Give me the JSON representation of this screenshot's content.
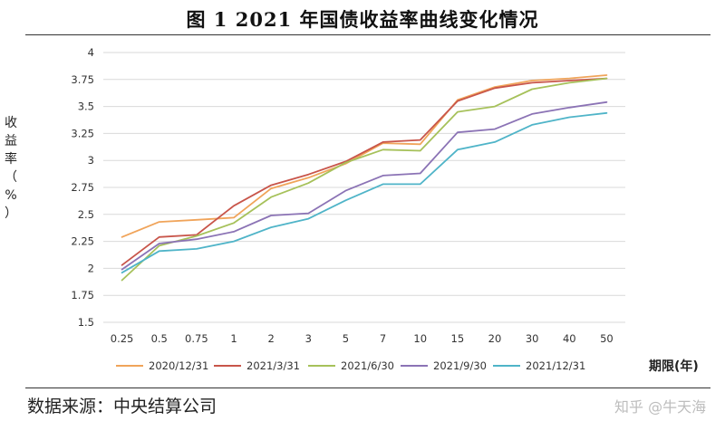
{
  "title": "图 1 2021 年国债收益率曲线变化情况",
  "source": "数据来源：中央结算公司",
  "watermark": "知乎 @牛天海",
  "chart_data": {
    "type": "line",
    "ylabel": "收益率（%）",
    "xlabel": "期限(年)",
    "categories": [
      "0.25",
      "0.5",
      "0.75",
      "1",
      "2",
      "3",
      "5",
      "7",
      "10",
      "15",
      "20",
      "30",
      "40",
      "50"
    ],
    "ylim": [
      1.5,
      4
    ],
    "yticks": [
      "1.5",
      "1.75",
      "2",
      "2.25",
      "2.5",
      "2.75",
      "3",
      "3.25",
      "3.5",
      "3.75",
      "4"
    ],
    "grid": true,
    "legend_position": "bottom",
    "series": [
      {
        "name": "2020/12/31",
        "color": "#F0A45A",
        "values": [
          2.29,
          2.43,
          2.45,
          2.47,
          2.74,
          2.84,
          2.97,
          3.16,
          3.15,
          3.56,
          3.68,
          3.74,
          3.76,
          3.79
        ]
      },
      {
        "name": "2021/3/31",
        "color": "#C8554A",
        "values": [
          2.03,
          2.29,
          2.31,
          2.58,
          2.77,
          2.87,
          2.99,
          3.17,
          3.19,
          3.55,
          3.67,
          3.72,
          3.74,
          3.76
        ]
      },
      {
        "name": "2021/6/30",
        "color": "#A6C15A",
        "values": [
          1.89,
          2.21,
          2.3,
          2.42,
          2.66,
          2.79,
          2.98,
          3.1,
          3.09,
          3.45,
          3.5,
          3.66,
          3.72,
          3.76
        ]
      },
      {
        "name": "2021/9/30",
        "color": "#8B73B5",
        "values": [
          1.99,
          2.23,
          2.27,
          2.34,
          2.49,
          2.51,
          2.72,
          2.86,
          2.88,
          3.26,
          3.29,
          3.43,
          3.49,
          3.54
        ]
      },
      {
        "name": "2021/12/31",
        "color": "#4FB4C8",
        "values": [
          1.96,
          2.16,
          2.18,
          2.25,
          2.38,
          2.46,
          2.63,
          2.78,
          2.78,
          3.1,
          3.17,
          3.33,
          3.4,
          3.44
        ]
      }
    ]
  }
}
